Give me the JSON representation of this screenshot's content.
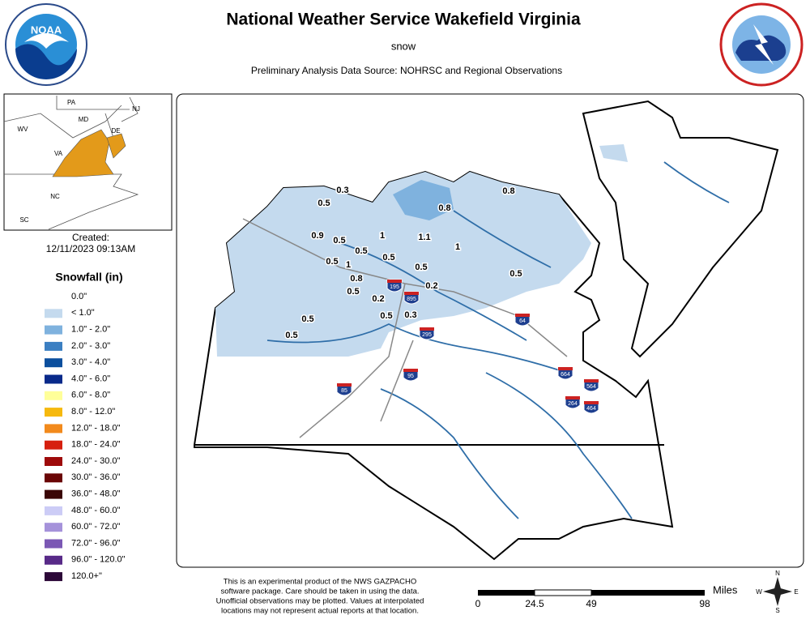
{
  "header": {
    "title": "National Weather Service Wakefield Virginia",
    "subtitle": "snow",
    "source": "Preliminary Analysis Data Source: NOHRSC and Regional Observations"
  },
  "logos": {
    "noaa": "NOAA"
  },
  "inset": {
    "states": [
      "PA",
      "NJ",
      "MD",
      "DE",
      "WV",
      "VA",
      "NC",
      "SC"
    ],
    "highlight_color": "#e39a1a"
  },
  "created": {
    "label": "Created:",
    "timestamp": "12/11/2023 09:13AM"
  },
  "legend": {
    "title": "Snowfall (in)",
    "items": [
      {
        "label": "0.0\"",
        "color": "#ffffff"
      },
      {
        "label": "< 1.0\"",
        "color": "#c4daee"
      },
      {
        "label": "1.0\" - 2.0\"",
        "color": "#7fb2de"
      },
      {
        "label": "2.0\" - 3.0\"",
        "color": "#3b7fc2"
      },
      {
        "label": "3.0\" - 4.0\"",
        "color": "#0b4f9e"
      },
      {
        "label": "4.0\" - 6.0\"",
        "color": "#08298a"
      },
      {
        "label": "6.0\" - 8.0\"",
        "color": "#ffff99"
      },
      {
        "label": "8.0\" - 12.0\"",
        "color": "#f6b90e"
      },
      {
        "label": "12.0\" - 18.0\"",
        "color": "#f28a1c"
      },
      {
        "label": "18.0\" - 24.0\"",
        "color": "#d6200f"
      },
      {
        "label": "24.0\" - 30.0\"",
        "color": "#9e0a0a"
      },
      {
        "label": "30.0\" - 36.0\"",
        "color": "#6a0505"
      },
      {
        "label": "36.0\" - 48.0\"",
        "color": "#3a0606"
      },
      {
        "label": "48.0\" - 60.0\"",
        "color": "#ccccf6"
      },
      {
        "label": "60.0\" - 72.0\"",
        "color": "#a592da"
      },
      {
        "label": "72.0\" - 96.0\"",
        "color": "#7b58b4"
      },
      {
        "label": "96.0\" - 120.0\"",
        "color": "#582a88"
      },
      {
        "label": "120.0+\"",
        "color": "#2c0838"
      }
    ]
  },
  "map": {
    "observations": [
      "0.3",
      "0.5",
      "0.8",
      "0.8",
      "0.9",
      "0.5",
      "0.5",
      "1",
      "1.1",
      "1",
      "0.5",
      "0.5",
      "1",
      "0.5",
      "0.8",
      "0.5",
      "0.2",
      "0.2",
      "0.5",
      "0.3",
      "0.5",
      "0.5",
      "0.5"
    ],
    "interstates": [
      "195",
      "895",
      "295",
      "95",
      "85",
      "64",
      "664",
      "564",
      "264",
      "464"
    ]
  },
  "footer": {
    "disclaimer": [
      "This is an experimental product of the NWS GAZPACHO",
      "software package. Care should be taken in using the data.",
      "Unofficial observations may be plotted. Values at interpolated",
      "locations may not represent actual reports at that location."
    ],
    "scale": {
      "unit": "Miles",
      "ticks": [
        "0",
        "24.5",
        "49",
        "98"
      ]
    },
    "compass": [
      "N",
      "S",
      "E",
      "W"
    ]
  }
}
